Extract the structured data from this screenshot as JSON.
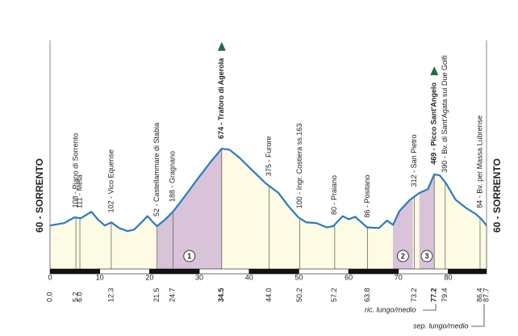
{
  "chart_data": {
    "type": "elevation-profile",
    "start_label": "60 - SORRENTO",
    "finish_label": "60 - SORRENTO",
    "x": [
      0,
      2.9,
      4.9,
      6.2,
      8.3,
      9.7,
      11,
      12.3,
      13.9,
      15.6,
      16.9,
      18.5,
      19.6,
      20.7,
      21.5,
      23.2,
      24.8,
      27.2,
      29.7,
      32.4,
      34.5,
      36.1,
      38.1,
      40.4,
      43.4,
      45.9,
      48,
      49.9,
      51.5,
      53.5,
      55.6,
      56.9,
      58.8,
      60,
      61.3,
      63.7,
      66.1,
      67.7,
      68.9,
      70.2,
      72.3,
      74.2,
      75.9,
      77.2,
      78.3,
      79.6,
      81.5,
      83.6,
      85.6,
      86.7,
      87.7
    ],
    "values": [
      60,
      80,
      125,
      118,
      170,
      105,
      60,
      85,
      40,
      15,
      28,
      90,
      135,
      85,
      55,
      110,
      175,
      300,
      435,
      575,
      674,
      665,
      600,
      510,
      395,
      320,
      210,
      125,
      85,
      80,
      45,
      55,
      135,
      110,
      130,
      45,
      40,
      100,
      65,
      175,
      265,
      320,
      350,
      469,
      460,
      395,
      265,
      200,
      150,
      110,
      60
    ],
    "xlim": [
      0,
      87.7
    ],
    "ylim": [
      -300,
      1000
    ],
    "xticks": [
      0,
      10,
      20,
      30,
      40,
      50,
      60,
      70,
      80
    ],
    "color": "#2b7bc0",
    "fill": "#fdfbe3",
    "climb_color": "#d8c3d8",
    "kom_color": "#1f6e3f",
    "climbs": [
      {
        "label": "1",
        "start": 21.5,
        "end": 34.5
      },
      {
        "label": "2",
        "start": 68.9,
        "end": 72.9
      },
      {
        "label": "3",
        "start": 74.2,
        "end": 77.2
      }
    ],
    "waypoints": [
      {
        "km": {
          "value": 0,
          "label": "0.0"
        }
      },
      {
        "km": {
          "value": 5.2,
          "label": "5.2"
        },
        "name": "108 - Piano di Sorrento"
      },
      {
        "km": {
          "value": 6,
          "label": "6.0"
        },
        "name": "111 - Meta"
      },
      {
        "km": {
          "value": 12.3,
          "label": "12.3"
        },
        "name": "102 - Vico Equense"
      },
      {
        "km": {
          "value": 21.5,
          "label": "21.5"
        },
        "name": "52 - Castellammare di Stabia"
      },
      {
        "km": {
          "value": 24.7,
          "label": "24.7"
        },
        "name": "188 - Gragnano"
      },
      {
        "km": {
          "value": 34.5,
          "label": "34.5"
        },
        "name": "674 - Traforo di Agerola",
        "bold": true,
        "kom": true
      },
      {
        "km": {
          "value": 44,
          "label": "44.0"
        },
        "name": "375 - Furore"
      },
      {
        "km": {
          "value": 50.2,
          "label": "50.2"
        },
        "name": "100 - Ingr. Costiera ss.163"
      },
      {
        "km": {
          "value": 57.2,
          "label": "57.2"
        },
        "name": "80 - Praiano"
      },
      {
        "km": {
          "value": 63.8,
          "label": "63.8"
        },
        "name": "86 - Positano"
      },
      {
        "km": {
          "value": 73.2,
          "label": "73.2"
        },
        "name": "312 - San Pietro"
      },
      {
        "km": {
          "value": 77.2,
          "label": "77.2"
        },
        "name": "469 - Picco Sant'Angelo",
        "bold": true,
        "kom": true
      },
      {
        "km": {
          "value": 79.4,
          "label": "79.4"
        },
        "name": "390 - Bv. di Sant'Agata sui Due Golfi"
      },
      {
        "km": {
          "value": 86.4,
          "label": "86.4"
        },
        "name": "84 - Bv. per Massa Lubrense"
      },
      {
        "km": {
          "value": 87.7,
          "label": "87.7"
        }
      }
    ],
    "annotations": [
      "ric. lungo/medio",
      "sep. lungo/medio"
    ]
  }
}
